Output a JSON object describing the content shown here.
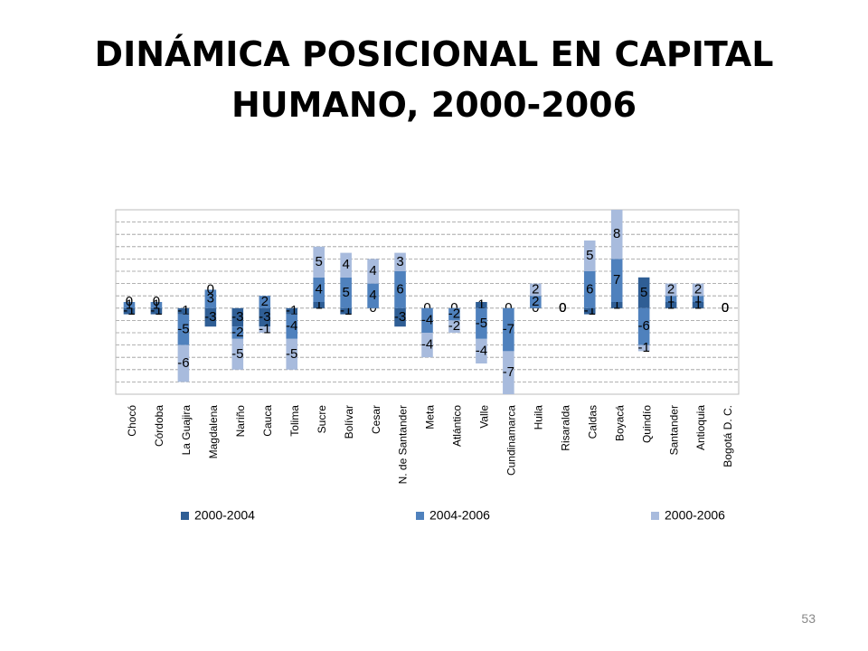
{
  "chart_data": {
    "type": "bar",
    "stacked": true,
    "title": "DINÁMICA POSICIONAL EN  CAPITAL HUMANO, 2000-2006",
    "page_number": "53",
    "categories": [
      "Chocó",
      "Córdoba",
      "La Guajira",
      "Magdalena",
      "Nariño",
      "Cauca",
      "Tolima",
      "Sucre",
      "Bolívar",
      "Cesar",
      "N. de Santander",
      "Meta",
      "Atlántico",
      "Valle",
      "Cundinamarca",
      "Huila",
      "Risaralda",
      "Caldas",
      "Boyacá",
      "Quindío",
      "Santander",
      "Antioquia",
      "Bogotá D. C."
    ],
    "series": [
      {
        "name": "2000-2004",
        "color": "#2f5e95",
        "values": [
          -1,
          -1,
          -1,
          -3,
          -3,
          -3,
          -1,
          1,
          -1,
          0,
          -3,
          0,
          0,
          1,
          0,
          0,
          0,
          -1,
          1,
          5,
          1,
          1,
          0
        ]
      },
      {
        "name": "2004-2006",
        "color": "#4f81bd",
        "values": [
          1,
          1,
          -5,
          3,
          -2,
          2,
          -4,
          4,
          5,
          4,
          6,
          -4,
          -2,
          -5,
          -7,
          2,
          0,
          6,
          7,
          -6,
          1,
          1,
          0
        ]
      },
      {
        "name": "2000-2006",
        "color": "#a8bbdd",
        "values": [
          0,
          0,
          -6,
          0,
          -5,
          -1,
          -5,
          5,
          4,
          4,
          3,
          -4,
          -2,
          -4,
          -7,
          2,
          0,
          5,
          8,
          -1,
          2,
          2,
          0
        ]
      }
    ],
    "ylim": [
      -14,
      16
    ],
    "yticks": [
      -14,
      -12,
      -10,
      -8,
      -6,
      -4,
      -2,
      0,
      2,
      4,
      6,
      8,
      10,
      12,
      14,
      16
    ],
    "grid": true,
    "legend": "bottom"
  }
}
